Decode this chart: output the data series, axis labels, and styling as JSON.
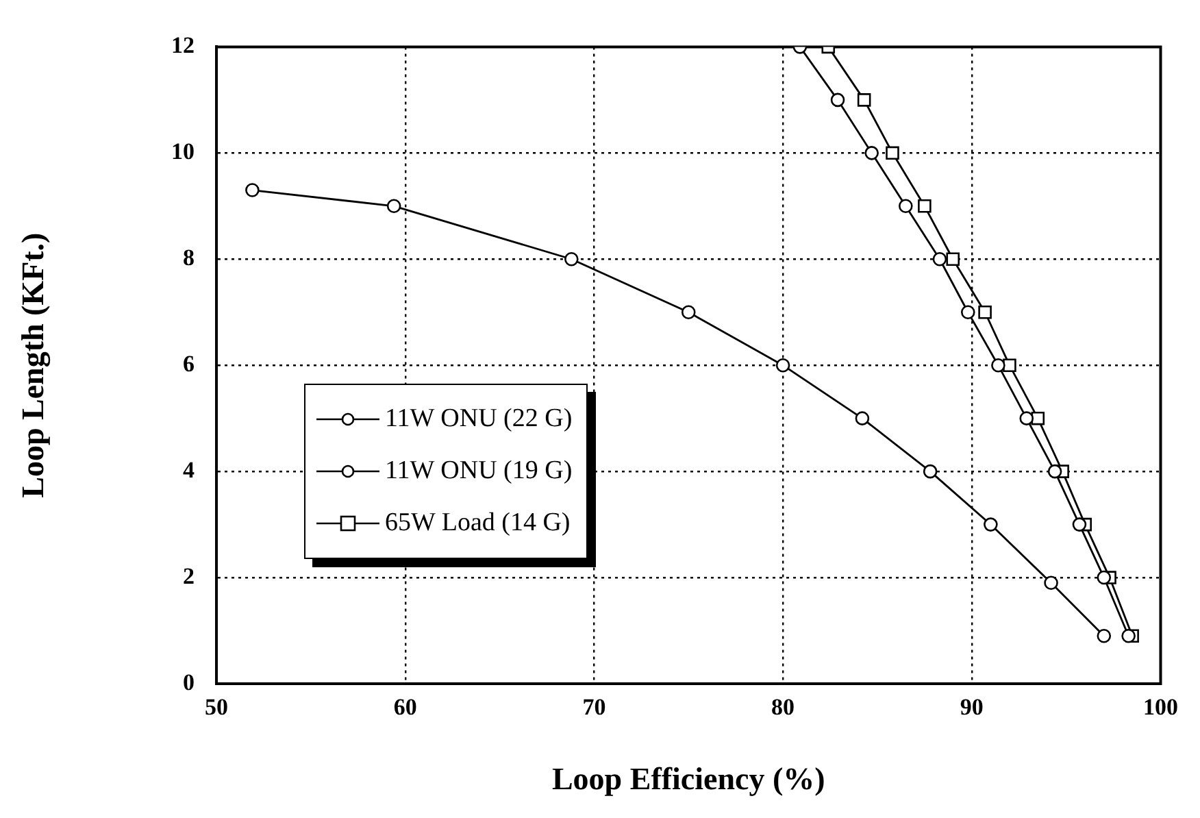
{
  "chart_data": {
    "type": "line",
    "xlabel": "Loop Efficiency (%)",
    "ylabel": "Loop Length (KFt.)",
    "xlim": [
      50,
      100
    ],
    "xticks": [
      50,
      60,
      70,
      80,
      90,
      100
    ],
    "ylim": [
      0,
      12
    ],
    "yticks": [
      0,
      2,
      4,
      6,
      8,
      10,
      12
    ],
    "grid": true,
    "legend": "left",
    "line_style": "solid",
    "series": [
      {
        "name": "11W ONU (22 G)",
        "color": "#000000",
        "marker": "circle",
        "x": [
          51.9,
          59.4,
          68.8,
          75.0,
          80.0,
          84.2,
          87.8,
          91.0,
          94.2,
          97.0
        ],
        "values": [
          9.3,
          9.0,
          8.0,
          7.0,
          6.0,
          5.0,
          4.0,
          3.0,
          1.9,
          0.9
        ]
      },
      {
        "name": "11W ONU (19 G)",
        "color": "#000000",
        "marker": "circle",
        "x": [
          80.9,
          82.9,
          84.7,
          86.5,
          88.3,
          89.8,
          91.4,
          92.9,
          94.4,
          95.7,
          97.0,
          98.3
        ],
        "values": [
          12,
          11,
          10,
          9,
          8,
          7,
          6,
          5,
          4,
          3,
          2,
          0.9
        ]
      },
      {
        "name": "65W Load (14 G)",
        "color": "#000000",
        "marker": "square",
        "x": [
          82.4,
          84.3,
          85.8,
          87.5,
          89.0,
          90.7,
          92.0,
          93.5,
          94.8,
          96.0,
          97.3,
          98.5
        ],
        "values": [
          12,
          11,
          10,
          9,
          8,
          7,
          6,
          5,
          4,
          3,
          2,
          0.9
        ]
      }
    ]
  }
}
